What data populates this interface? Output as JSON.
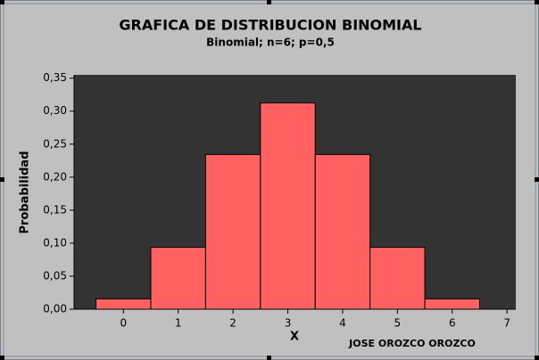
{
  "chart_data": {
    "type": "bar",
    "title": "GRAFICA DE DISTRIBUCION BINOMIAL",
    "subtitle": "Binomial; n=6; p=0,5",
    "x_label": "X",
    "y_label": "Probabilidad",
    "annotation": "JOSE OROZCO OROZCO",
    "x": [
      0,
      1,
      2,
      3,
      4,
      5,
      6
    ],
    "values": [
      0.015625,
      0.09375,
      0.234375,
      0.3125,
      0.234375,
      0.09375,
      0.015625
    ],
    "color": "#ff6060",
    "xlim": [
      -0.9,
      7.16
    ],
    "xticks": [
      0,
      1,
      2,
      3,
      4,
      5,
      6,
      7
    ],
    "ylim": [
      0,
      0.355
    ],
    "yticks": [
      {
        "value": 0,
        "label": "0,00"
      },
      {
        "value": 0.05,
        "label": "0,05"
      },
      {
        "value": 0.1,
        "label": "0,10"
      },
      {
        "value": 0.15,
        "label": "0,15"
      },
      {
        "value": 0.2,
        "label": "0,20"
      },
      {
        "value": 0.25,
        "label": "0,25"
      },
      {
        "value": 0.3,
        "label": "0,30"
      },
      {
        "value": 0.35,
        "label": "0,35"
      }
    ]
  }
}
